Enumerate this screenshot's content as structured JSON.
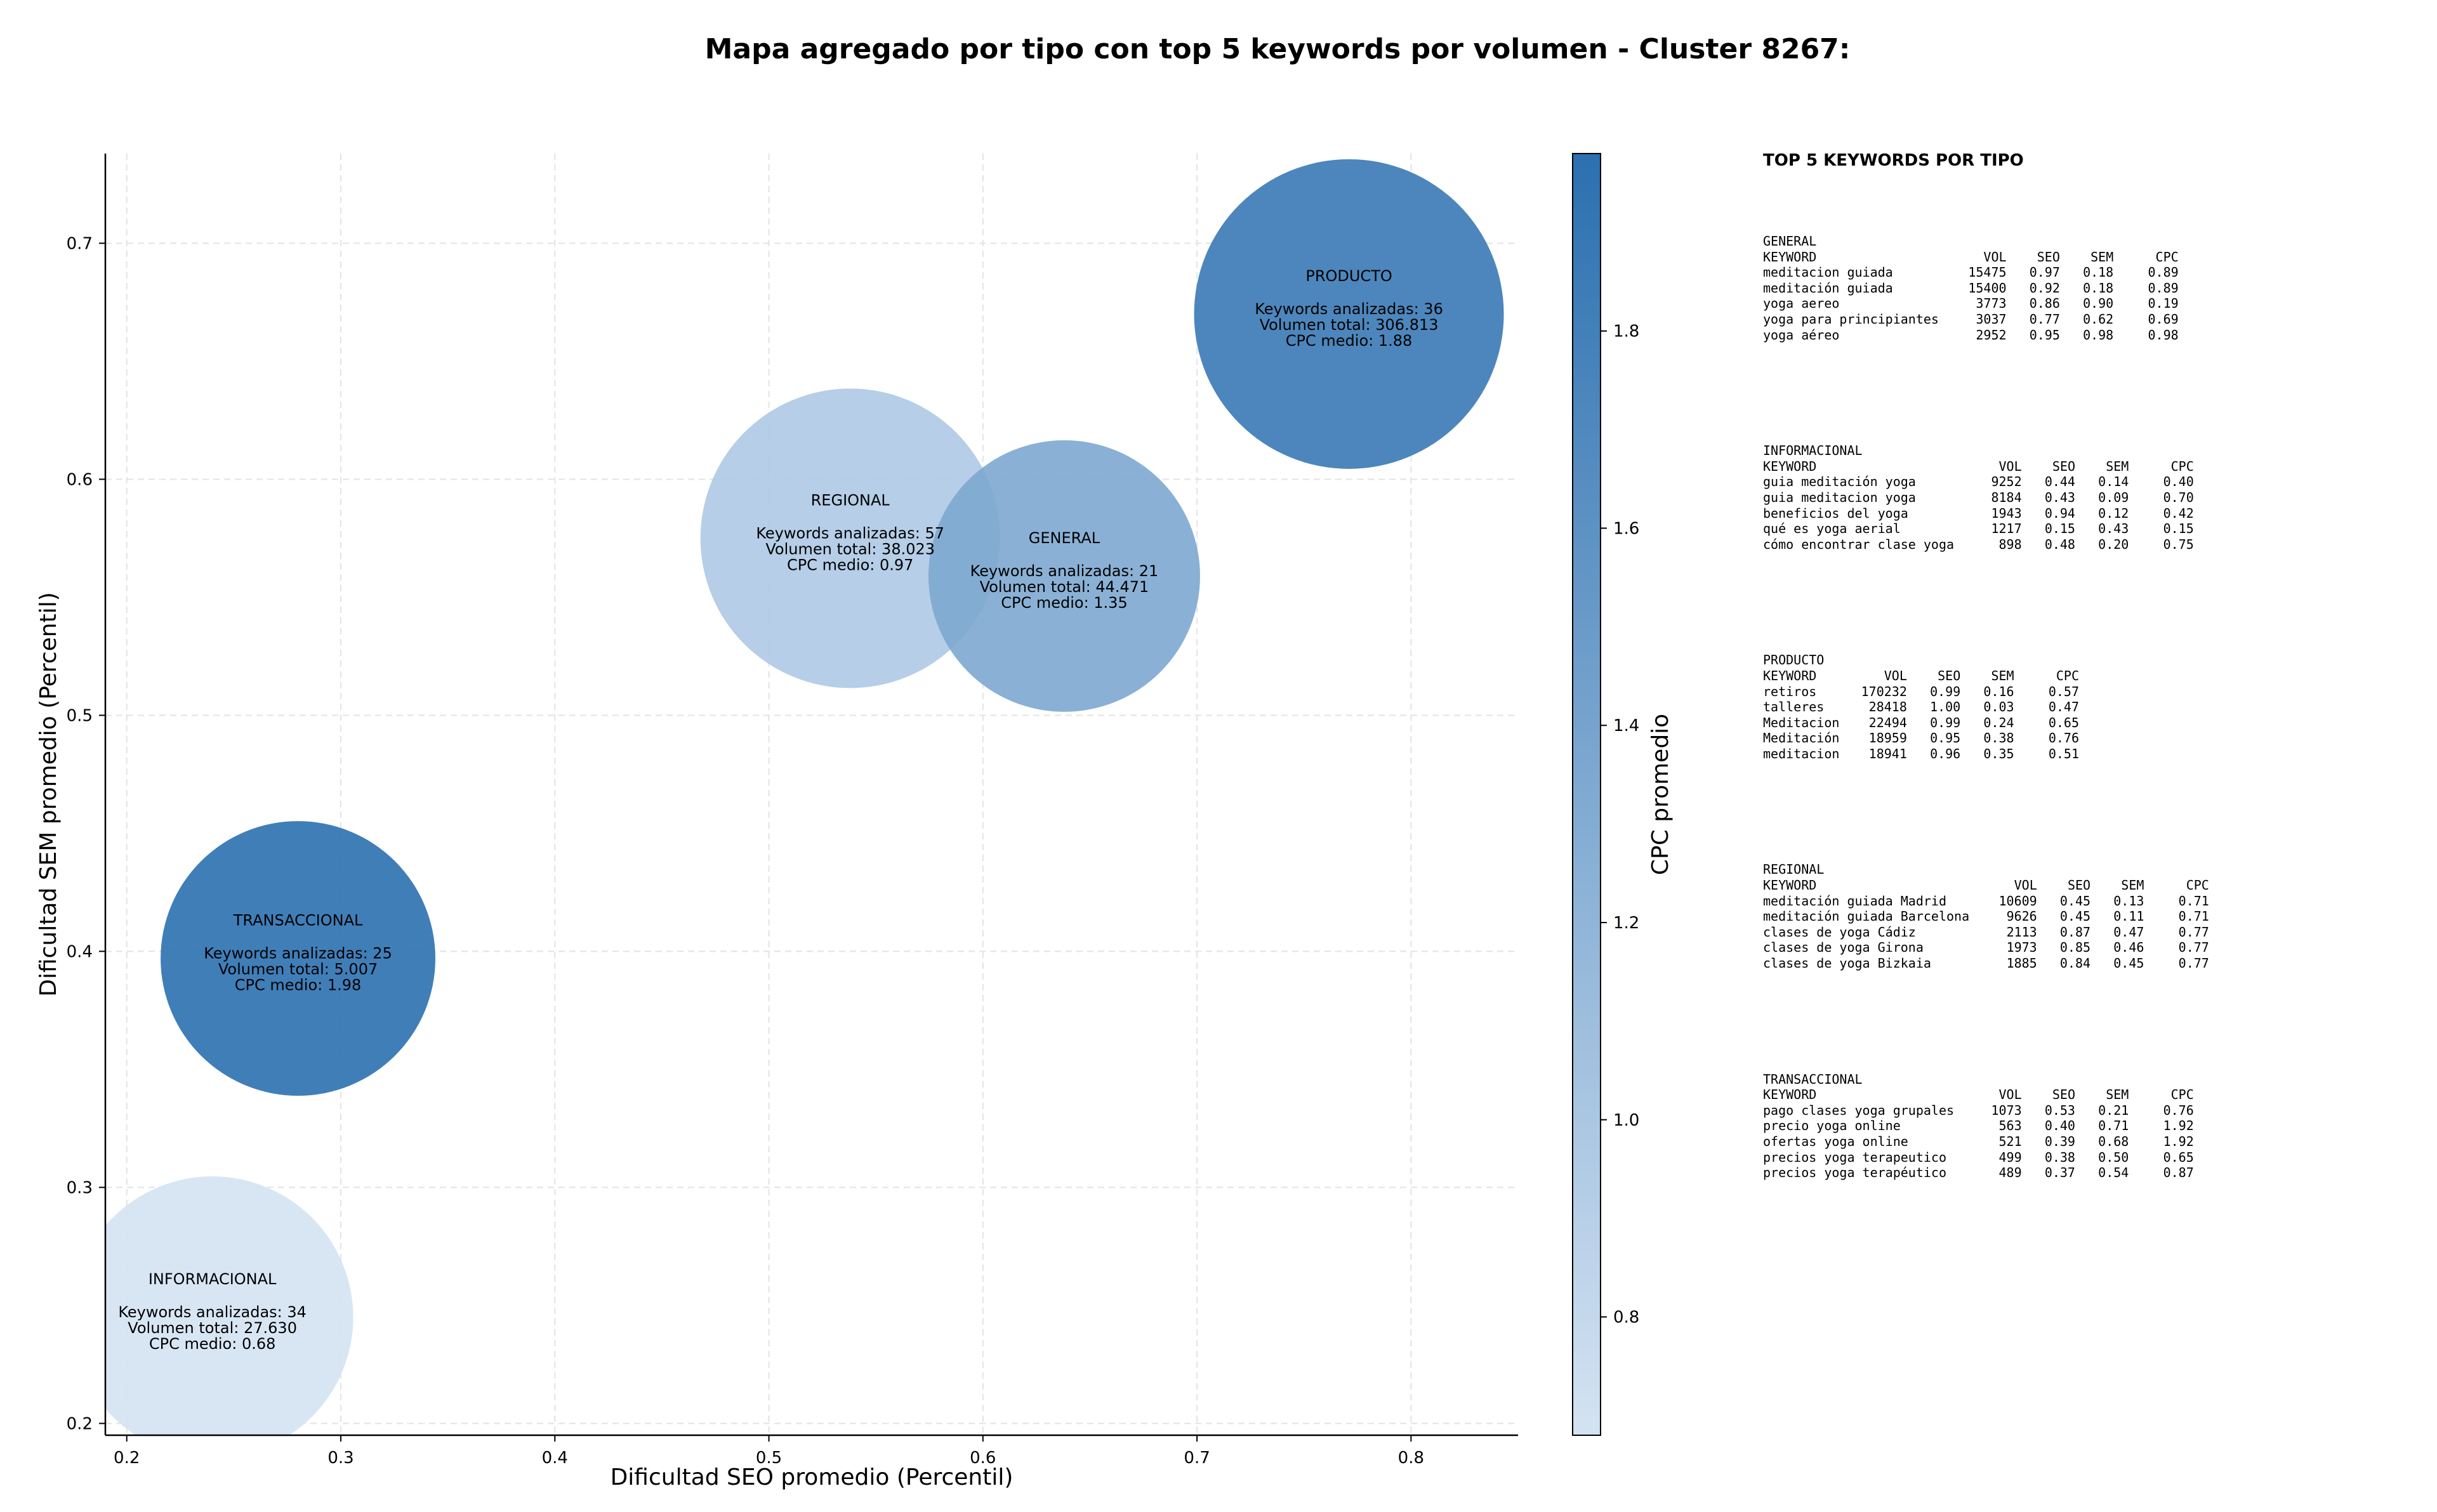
{
  "title": "Mapa agregado por tipo con top 5 keywords por volumen - Cluster 8267:",
  "chart_data": {
    "type": "scatter",
    "xlabel": "Dificultad SEO promedio (Percentil)",
    "ylabel": "Dificultad SEM promedio (Percentil)",
    "colorbar_label": "CPC promedio",
    "xlim": [
      0.19,
      0.85
    ],
    "ylim": [
      0.195,
      0.738
    ],
    "x_ticks": [
      "0.2",
      "0.3",
      "0.4",
      "0.5",
      "0.6",
      "0.7",
      "0.8"
    ],
    "y_ticks": [
      "0.2",
      "0.3",
      "0.4",
      "0.5",
      "0.6",
      "0.7"
    ],
    "colorbar_ticks": [
      "0.8",
      "1.0",
      "1.2",
      "1.4",
      "1.6",
      "1.8"
    ],
    "colorbar_range": [
      0.68,
      1.98
    ],
    "colormap": [
      "#d4e3f3",
      "#2b70b0"
    ],
    "grid": true,
    "points": [
      {
        "label": "INFORMACIONAL",
        "x": 0.24,
        "y": 0.245,
        "keywords_line": "Keywords analizadas: 34",
        "volume_line": "Volumen total: 27.630",
        "cpc_line": "CPC medio: 0.68",
        "cpc": 0.68,
        "keywords": 34
      },
      {
        "label": "TRANSACCIONAL",
        "x": 0.28,
        "y": 0.397,
        "keywords_line": "Keywords analizadas: 25",
        "volume_line": "Volumen total: 5.007",
        "cpc_line": "CPC medio: 1.98",
        "cpc": 1.98,
        "keywords": 25
      },
      {
        "label": "REGIONAL",
        "x": 0.538,
        "y": 0.575,
        "keywords_line": "Keywords analizadas: 57",
        "volume_line": "Volumen total: 38.023",
        "cpc_line": "CPC medio: 0.97",
        "cpc": 0.97,
        "keywords": 57
      },
      {
        "label": "GENERAL",
        "x": 0.638,
        "y": 0.559,
        "keywords_line": "Keywords analizadas: 21",
        "volume_line": "Volumen total: 44.471",
        "cpc_line": "CPC medio: 1.35",
        "cpc": 1.35,
        "keywords": 21
      },
      {
        "label": "PRODUCTO",
        "x": 0.771,
        "y": 0.67,
        "keywords_line": "Keywords analizadas: 36",
        "volume_line": "Volumen total: 306.813",
        "cpc_line": "CPC medio: 1.88",
        "cpc": 1.88,
        "keywords": 36
      }
    ]
  },
  "table": {
    "title": "TOP 5 KEYWORDS POR TIPO",
    "headers": [
      "KEYWORD",
      "VOL",
      "SEO",
      "SEM",
      "CPC"
    ],
    "groups": [
      {
        "name": "GENERAL",
        "rows": [
          [
            "meditacion guiada",
            "15475",
            "0.97",
            "0.18",
            "0.89"
          ],
          [
            "meditación guiada",
            "15400",
            "0.92",
            "0.18",
            "0.89"
          ],
          [
            "yoga aereo",
            "3773",
            "0.86",
            "0.90",
            "0.19"
          ],
          [
            "yoga para principiantes",
            "3037",
            "0.77",
            "0.62",
            "0.69"
          ],
          [
            "yoga aéreo",
            "2952",
            "0.95",
            "0.98",
            "0.98"
          ]
        ]
      },
      {
        "name": "INFORMACIONAL",
        "rows": [
          [
            "guia meditación yoga",
            "9252",
            "0.44",
            "0.14",
            "0.40"
          ],
          [
            "guia meditacion yoga",
            "8184",
            "0.43",
            "0.09",
            "0.70"
          ],
          [
            "beneficios del yoga",
            "1943",
            "0.94",
            "0.12",
            "0.42"
          ],
          [
            "qué es yoga aerial",
            "1217",
            "0.15",
            "0.43",
            "0.15"
          ],
          [
            "cómo encontrar clase yoga",
            "898",
            "0.48",
            "0.20",
            "0.75"
          ]
        ]
      },
      {
        "name": "PRODUCTO",
        "rows": [
          [
            "retiros",
            "170232",
            "0.99",
            "0.16",
            "0.57"
          ],
          [
            "talleres",
            "28418",
            "1.00",
            "0.03",
            "0.47"
          ],
          [
            "Meditacion",
            "22494",
            "0.99",
            "0.24",
            "0.65"
          ],
          [
            "Meditación",
            "18959",
            "0.95",
            "0.38",
            "0.76"
          ],
          [
            "meditacion",
            "18941",
            "0.96",
            "0.35",
            "0.51"
          ]
        ]
      },
      {
        "name": "REGIONAL",
        "rows": [
          [
            "meditación guiada Madrid",
            "10609",
            "0.45",
            "0.13",
            "0.71"
          ],
          [
            "meditación guiada Barcelona",
            "9626",
            "0.45",
            "0.11",
            "0.71"
          ],
          [
            "clases de yoga Cádiz",
            "2113",
            "0.87",
            "0.47",
            "0.77"
          ],
          [
            "clases de yoga Girona",
            "1973",
            "0.85",
            "0.46",
            "0.77"
          ],
          [
            "clases de yoga Bizkaia",
            "1885",
            "0.84",
            "0.45",
            "0.77"
          ]
        ]
      },
      {
        "name": "TRANSACCIONAL",
        "rows": [
          [
            "pago clases yoga grupales",
            "1073",
            "0.53",
            "0.21",
            "0.76"
          ],
          [
            "precio yoga online",
            "563",
            "0.40",
            "0.71",
            "1.92"
          ],
          [
            "ofertas yoga online",
            "521",
            "0.39",
            "0.68",
            "1.92"
          ],
          [
            "precios yoga terapeutico",
            "499",
            "0.38",
            "0.50",
            "0.65"
          ],
          [
            "precios yoga terapéutico",
            "489",
            "0.37",
            "0.54",
            "0.87"
          ]
        ]
      }
    ]
  }
}
